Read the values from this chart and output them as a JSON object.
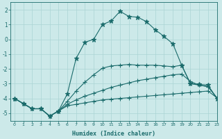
{
  "xlabel": "Humidex (Indice chaleur)",
  "bg_color": "#cce9e9",
  "grid_color": "#aad4d4",
  "line_color": "#1a6b6b",
  "xlim": [
    -0.5,
    23
  ],
  "ylim": [
    -5.5,
    2.5
  ],
  "yticks": [
    -5,
    -4,
    -3,
    -2,
    -1,
    0,
    1,
    2
  ],
  "xticks": [
    0,
    1,
    2,
    3,
    4,
    5,
    6,
    7,
    8,
    9,
    10,
    11,
    12,
    13,
    14,
    15,
    16,
    17,
    18,
    19,
    20,
    21,
    22,
    23
  ],
  "series": [
    {
      "x": [
        0,
        1,
        2,
        3,
        4,
        5,
        6,
        7,
        8,
        9,
        10,
        11,
        12,
        13,
        14,
        15,
        16,
        17,
        18,
        19,
        20,
        21,
        22,
        23
      ],
      "y": [
        -4.0,
        -4.35,
        -4.7,
        -4.7,
        -5.2,
        -4.85,
        -4.5,
        -4.4,
        -4.3,
        -4.2,
        -4.1,
        -4.05,
        -4.0,
        -3.95,
        -3.9,
        -3.85,
        -3.8,
        -3.75,
        -3.7,
        -3.65,
        -3.6,
        -3.55,
        -3.5,
        -3.95
      ],
      "marker": true
    },
    {
      "x": [
        0,
        1,
        2,
        3,
        4,
        5,
        6,
        7,
        8,
        9,
        10,
        11,
        12,
        13,
        14,
        15,
        16,
        17,
        18,
        19,
        20,
        21,
        22,
        23
      ],
      "y": [
        -4.0,
        -4.35,
        -4.7,
        -4.7,
        -5.2,
        -4.85,
        -4.4,
        -4.1,
        -3.85,
        -3.65,
        -3.45,
        -3.25,
        -3.1,
        -2.95,
        -2.8,
        -2.7,
        -2.6,
        -2.5,
        -2.4,
        -2.35,
        -2.85,
        -3.1,
        -3.2,
        -3.95
      ],
      "marker": true
    },
    {
      "x": [
        0,
        1,
        2,
        3,
        4,
        5,
        6,
        7,
        8,
        9,
        10,
        11,
        12,
        13,
        14,
        15,
        16,
        17,
        18,
        19,
        20,
        21,
        22,
        23
      ],
      "y": [
        -4.0,
        -4.35,
        -4.7,
        -4.7,
        -5.2,
        -4.85,
        -4.2,
        -3.5,
        -2.9,
        -2.4,
        -1.95,
        -1.8,
        -1.75,
        -1.7,
        -1.75,
        -1.75,
        -1.75,
        -1.8,
        -1.85,
        -1.75,
        -3.0,
        -3.1,
        -3.2,
        -3.95
      ],
      "marker": true
    },
    {
      "x": [
        0,
        1,
        2,
        3,
        4,
        5,
        6,
        7,
        8,
        9,
        10,
        11,
        12,
        13,
        14,
        15,
        16,
        17,
        18,
        19,
        20,
        21,
        22,
        23
      ],
      "y": [
        -4.0,
        -4.35,
        -4.7,
        -4.7,
        -5.2,
        -4.85,
        -3.7,
        -1.3,
        -0.2,
        0.0,
        1.0,
        1.25,
        1.9,
        1.55,
        1.5,
        1.2,
        0.65,
        0.2,
        -0.3,
        -1.75,
        -3.0,
        -3.05,
        -3.1,
        -4.0
      ],
      "marker": true
    }
  ]
}
